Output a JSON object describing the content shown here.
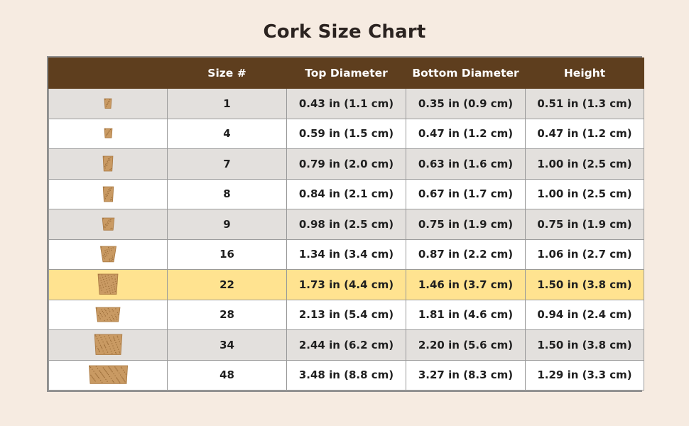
{
  "title": "Cork Size Chart",
  "colors": {
    "header_bg": "#5e3e1e",
    "header_text": "#ffffff",
    "row_alt": "#e3e0dd",
    "row_plain": "#ffffff",
    "highlight": "#ffe390",
    "cork": "#c99a63",
    "page_bg": "#f6ebe1"
  },
  "highlighted_size": "22",
  "chart_data": {
    "type": "table",
    "title": "Cork Size Chart",
    "columns": [
      "",
      "Size #",
      "Top Diameter",
      "Bottom Diameter",
      "Height"
    ],
    "rows": [
      {
        "size": "1",
        "top": "0.43 in (1.1 cm)",
        "bottom": "0.35 in (0.9 cm)",
        "height": "0.51 in (1.3 cm)",
        "top_in": 0.43,
        "bottom_in": 0.35,
        "height_in": 0.51
      },
      {
        "size": "4",
        "top": "0.59 in (1.5 cm)",
        "bottom": "0.47 in (1.2 cm)",
        "height": "0.47 in (1.2 cm)",
        "top_in": 0.59,
        "bottom_in": 0.47,
        "height_in": 0.47
      },
      {
        "size": "7",
        "top": "0.79 in (2.0 cm)",
        "bottom": "0.63 in (1.6 cm)",
        "height": "1.00 in (2.5 cm)",
        "top_in": 0.79,
        "bottom_in": 0.63,
        "height_in": 1.0
      },
      {
        "size": "8",
        "top": "0.84 in (2.1 cm)",
        "bottom": "0.67 in (1.7 cm)",
        "height": "1.00 in (2.5 cm)",
        "top_in": 0.84,
        "bottom_in": 0.67,
        "height_in": 1.0
      },
      {
        "size": "9",
        "top": "0.98 in (2.5 cm)",
        "bottom": "0.75 in (1.9 cm)",
        "height": "0.75 in (1.9 cm)",
        "top_in": 0.98,
        "bottom_in": 0.75,
        "height_in": 0.75
      },
      {
        "size": "16",
        "top": "1.34 in (3.4 cm)",
        "bottom": "0.87 in (2.2 cm)",
        "height": "1.06 in (2.7 cm)",
        "top_in": 1.34,
        "bottom_in": 0.87,
        "height_in": 1.06
      },
      {
        "size": "22",
        "top": "1.73 in (4.4 cm)",
        "bottom": "1.46 in (3.7 cm)",
        "height": "1.50 in (3.8 cm)",
        "top_in": 1.73,
        "bottom_in": 1.46,
        "height_in": 1.5
      },
      {
        "size": "28",
        "top": "2.13 in (5.4 cm)",
        "bottom": "1.81 in (4.6 cm)",
        "height": "0.94 in (2.4 cm)",
        "top_in": 2.13,
        "bottom_in": 1.81,
        "height_in": 0.94
      },
      {
        "size": "34",
        "top": "2.44 in (6.2 cm)",
        "bottom": "2.20 in (5.6 cm)",
        "height": "1.50 in (3.8 cm)",
        "top_in": 2.44,
        "bottom_in": 2.2,
        "height_in": 1.5
      },
      {
        "size": "48",
        "top": "3.48 in (8.8 cm)",
        "bottom": "3.27 in (8.3 cm)",
        "height": "1.29 in (3.3 cm)",
        "top_in": 3.48,
        "bottom_in": 3.27,
        "height_in": 1.29
      }
    ]
  }
}
